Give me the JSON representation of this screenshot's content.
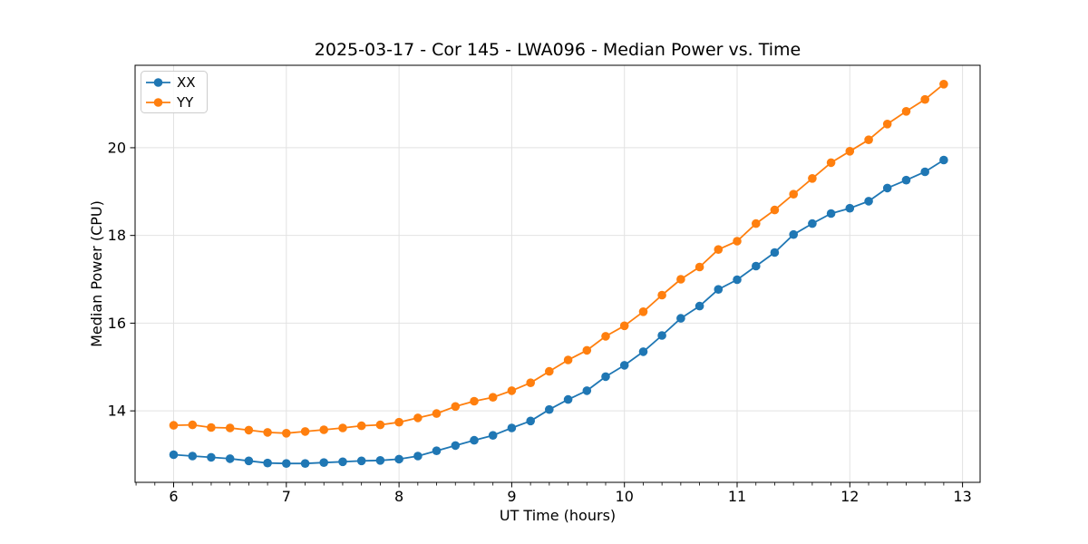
{
  "chart_data": {
    "type": "line",
    "title": "2025-03-17 - Cor 145 - LWA096 - Median Power vs. Time",
    "xlabel": "UT Time (hours)",
    "ylabel": "Median Power (CPU)",
    "xlim": [
      5.658,
      13.156
    ],
    "ylim": [
      12.37,
      21.88
    ],
    "xticks": [
      6,
      7,
      8,
      9,
      10,
      11,
      12,
      13
    ],
    "yticks": [
      14,
      16,
      18,
      20
    ],
    "x_minor_divisions": 6,
    "grid": true,
    "grid_color": "#e2e2e2",
    "legend_position": "upper left",
    "x": [
      6.0,
      6.167,
      6.333,
      6.5,
      6.667,
      6.833,
      7.0,
      7.167,
      7.333,
      7.5,
      7.667,
      7.833,
      8.0,
      8.167,
      8.333,
      8.5,
      8.667,
      8.833,
      9.0,
      9.167,
      9.333,
      9.5,
      9.667,
      9.833,
      10.0,
      10.167,
      10.333,
      10.5,
      10.667,
      10.833,
      11.0,
      11.167,
      11.333,
      11.5,
      11.667,
      11.833,
      12.0,
      12.167,
      12.333,
      12.5,
      12.667,
      12.833
    ],
    "series": [
      {
        "name": "XX",
        "color": "#1f77b4",
        "marker": "circle",
        "values": [
          13.0,
          12.97,
          12.94,
          12.91,
          12.86,
          12.81,
          12.8,
          12.8,
          12.82,
          12.84,
          12.86,
          12.87,
          12.9,
          12.97,
          13.09,
          13.21,
          13.33,
          13.44,
          13.61,
          13.77,
          14.03,
          14.26,
          14.46,
          14.78,
          15.04,
          15.35,
          15.72,
          16.11,
          16.39,
          16.77,
          16.99,
          17.3,
          17.61,
          18.02,
          18.27,
          18.5,
          18.62,
          18.78,
          19.08,
          19.26,
          19.45,
          19.72
        ]
      },
      {
        "name": "YY",
        "color": "#ff7f0e",
        "marker": "circle",
        "values": [
          13.67,
          13.68,
          13.62,
          13.61,
          13.56,
          13.51,
          13.49,
          13.53,
          13.57,
          13.61,
          13.66,
          13.68,
          13.74,
          13.84,
          13.94,
          14.1,
          14.22,
          14.31,
          14.46,
          14.64,
          14.9,
          15.16,
          15.38,
          15.7,
          15.94,
          16.26,
          16.64,
          17.0,
          17.28,
          17.68,
          17.87,
          18.27,
          18.58,
          18.94,
          19.3,
          19.66,
          19.92,
          20.18,
          20.54,
          20.83,
          21.1,
          21.45
        ]
      }
    ]
  }
}
